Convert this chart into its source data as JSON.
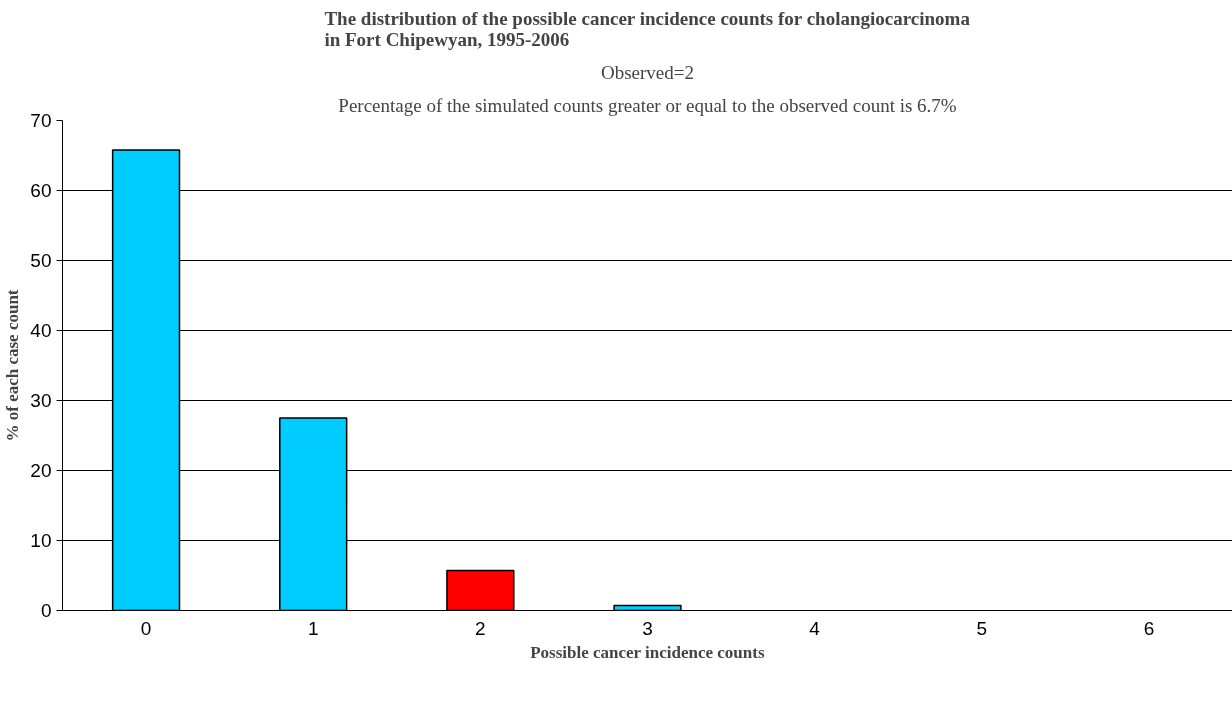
{
  "chart_data": {
    "type": "bar",
    "title": "The distribution of the possible cancer incidence counts for cholangiocarcinoma\nin Fort Chipewyan, 1995-2006",
    "subtitle": "Observed=2",
    "annotations": [
      "Percentage of the simulated counts greater or equal to the observed count is 6.7%"
    ],
    "xlabel": "Possible cancer incidence counts",
    "ylabel": "% of each case count",
    "categories": [
      "0",
      "1",
      "2",
      "3",
      "4",
      "5",
      "6"
    ],
    "values": [
      65.8,
      27.5,
      5.7,
      0.7,
      null,
      null,
      null
    ],
    "colors": [
      "#00ccff",
      "#00ccff",
      "#ff0000",
      "#00ccff",
      "#00ccff",
      "#00ccff",
      "#00ccff"
    ],
    "ylim": [
      0,
      70
    ],
    "yticks": [
      0,
      10,
      20,
      30,
      40,
      50,
      60,
      70
    ],
    "grid": "y"
  }
}
